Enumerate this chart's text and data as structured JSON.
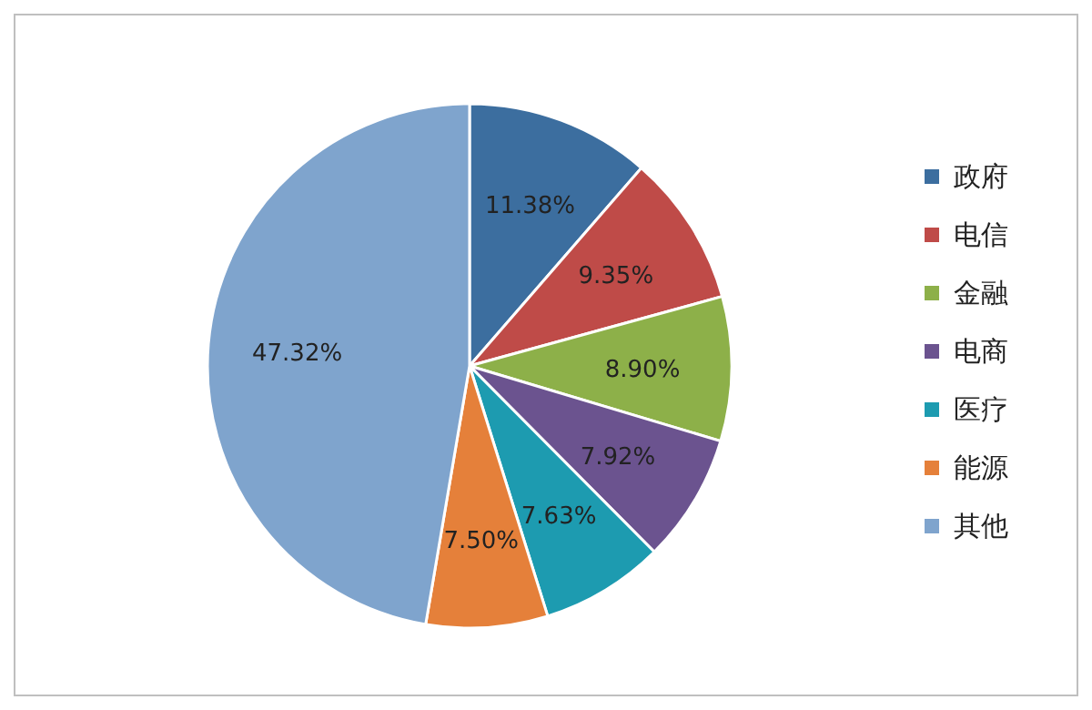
{
  "chart_data": {
    "type": "pie",
    "categories": [
      "政府",
      "电信",
      "金融",
      "电商",
      "医疗",
      "能源",
      "其他"
    ],
    "values": [
      11.38,
      9.35,
      8.9,
      7.92,
      7.63,
      7.5,
      47.32
    ],
    "value_labels": [
      "11.38%",
      "9.35%",
      "8.90%",
      "7.92%",
      "7.63%",
      "7.50%",
      "47.32%"
    ],
    "colors": [
      "#3c6e9f",
      "#bf4b48",
      "#8db049",
      "#6b538f",
      "#1d9bb0",
      "#e5803a",
      "#7fa4cd"
    ],
    "legend": "right"
  }
}
